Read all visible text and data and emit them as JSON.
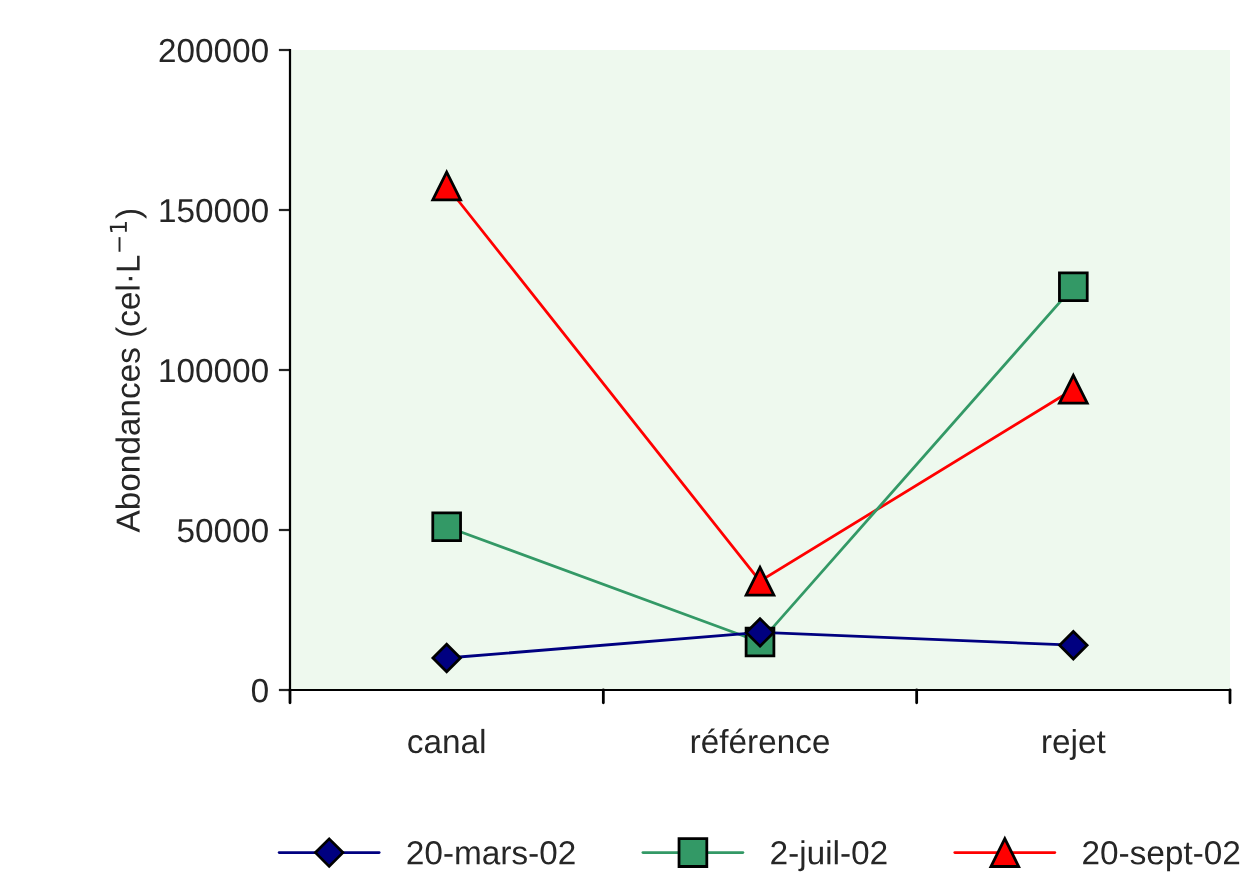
{
  "chart_data": {
    "type": "line",
    "ylabel": "Abondances (cel·L$^{−1}$)",
    "categories": [
      "canal",
      "référence",
      "rejet"
    ],
    "series": [
      {
        "name": "20-mars-02",
        "color": "#000080",
        "marker": "diamond",
        "values": [
          10000,
          18000,
          14000
        ]
      },
      {
        "name": "2-juil-02",
        "color": "#339966",
        "marker": "square",
        "values": [
          51000,
          15000,
          126000
        ]
      },
      {
        "name": "20-sept-02",
        "color": "#ff0000",
        "marker": "triangle",
        "values": [
          157500,
          34000,
          94000
        ]
      }
    ],
    "ylim": [
      0,
      200000
    ],
    "yticks": [
      0,
      50000,
      100000,
      150000,
      200000
    ],
    "grid": false,
    "legend": "bottom",
    "line_style": "solid"
  }
}
